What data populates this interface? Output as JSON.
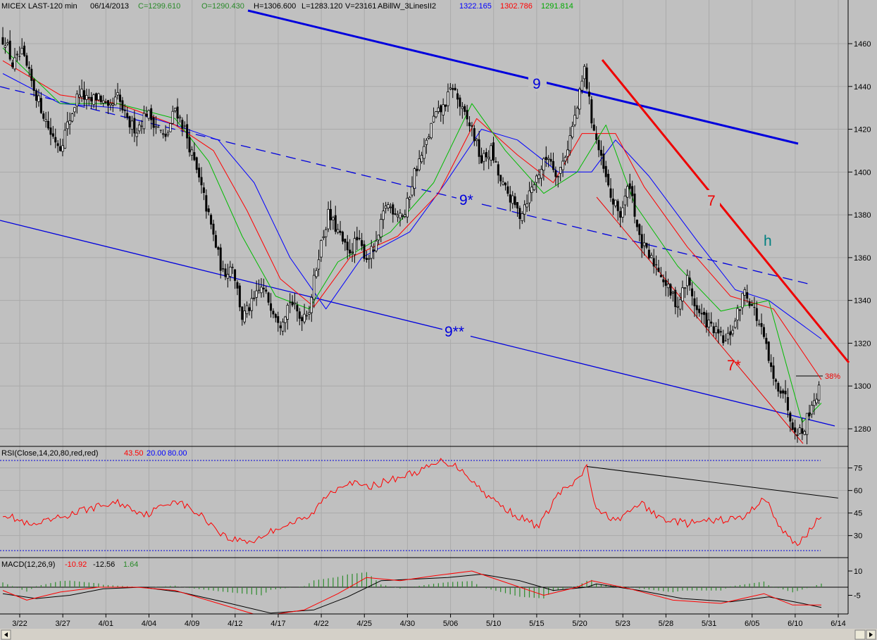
{
  "header": {
    "symbol": "MICEX LAST-120 min",
    "date": "06/14/2013",
    "close": "C=1299.610",
    "open": "O=1290.430",
    "high": "H=1306.600",
    "low": "L=1283.120",
    "volume": "V=23161",
    "study": "ABillW_3LinesII2",
    "line_blue": "1322.165",
    "line_red": "1302.786",
    "line_green": "1291.814"
  },
  "rsi_header": {
    "label": "RSI(Close,14,20,80,red,red)",
    "value": "43.50",
    "lower": "20.00",
    "upper": "80.00"
  },
  "macd_header": {
    "label": "MACD(12,26,9)",
    "macd": "-10.92",
    "signal": "-12.56",
    "hist": "1.64"
  },
  "annotations": {
    "nine": "9",
    "nine_star": "9*",
    "nine_2star": "9**",
    "seven": "7",
    "seven_star": "7*",
    "h": "h",
    "fib": "38%"
  },
  "colors": {
    "background": "#c0c0c0",
    "candles": "#000000",
    "ma_blue": "#0000ff",
    "ma_red": "#ff0000",
    "ma_green": "#00bb00",
    "trend_blue": "#0000dd",
    "trend_red": "#ee0000",
    "annot_teal": "#008080",
    "hist_green": "#2e8b2e"
  },
  "chart_data": {
    "type": "candlestick",
    "price_axis": {
      "ticks": [
        1280,
        1300,
        1320,
        1340,
        1360,
        1380,
        1400,
        1420,
        1440,
        1460
      ],
      "range": [
        1266,
        1470
      ]
    },
    "x_ticks": [
      "3/22",
      "3/27",
      "4/01",
      "4/04",
      "4/09",
      "4/12",
      "4/17",
      "4/22",
      "4/25",
      "4/30",
      "5/06",
      "5/10",
      "5/15",
      "5/20",
      "5/23",
      "5/28",
      "5/31",
      "6/05",
      "6/10",
      "6/14"
    ],
    "close_path": [
      [
        1,
        1462
      ],
      [
        4,
        1450
      ],
      [
        8,
        1455
      ],
      [
        12,
        1442
      ],
      [
        16,
        1430
      ],
      [
        20,
        1418
      ],
      [
        24,
        1412
      ],
      [
        28,
        1425
      ],
      [
        32,
        1438
      ],
      [
        36,
        1432
      ],
      [
        40,
        1436
      ],
      [
        44,
        1428
      ],
      [
        48,
        1435
      ],
      [
        52,
        1423
      ],
      [
        56,
        1420
      ],
      [
        60,
        1428
      ],
      [
        64,
        1422
      ],
      [
        68,
        1415
      ],
      [
        72,
        1430
      ],
      [
        76,
        1420
      ],
      [
        80,
        1404
      ],
      [
        84,
        1388
      ],
      [
        88,
        1370
      ],
      [
        92,
        1352
      ],
      [
        96,
        1357
      ],
      [
        100,
        1332
      ],
      [
        104,
        1338
      ],
      [
        108,
        1346
      ],
      [
        112,
        1338
      ],
      [
        116,
        1330
      ],
      [
        120,
        1340
      ],
      [
        124,
        1332
      ],
      [
        128,
        1336
      ],
      [
        132,
        1362
      ],
      [
        136,
        1380
      ],
      [
        140,
        1372
      ],
      [
        144,
        1362
      ],
      [
        148,
        1368
      ],
      [
        152,
        1360
      ],
      [
        156,
        1365
      ],
      [
        160,
        1385
      ],
      [
        164,
        1382
      ],
      [
        168,
        1380
      ],
      [
        172,
        1400
      ],
      [
        176,
        1410
      ],
      [
        180,
        1425
      ],
      [
        184,
        1430
      ],
      [
        188,
        1440
      ],
      [
        192,
        1428
      ],
      [
        196,
        1420
      ],
      [
        200,
        1405
      ],
      [
        204,
        1410
      ],
      [
        208,
        1395
      ],
      [
        212,
        1388
      ],
      [
        216,
        1380
      ],
      [
        220,
        1390
      ],
      [
        224,
        1400
      ],
      [
        228,
        1408
      ],
      [
        232,
        1398
      ],
      [
        236,
        1412
      ],
      [
        240,
        1430
      ],
      [
        243,
        1448
      ],
      [
        246,
        1425
      ],
      [
        250,
        1405
      ],
      [
        254,
        1388
      ],
      [
        258,
        1380
      ],
      [
        262,
        1395
      ],
      [
        266,
        1368
      ],
      [
        270,
        1360
      ],
      [
        274,
        1355
      ],
      [
        278,
        1345
      ],
      [
        282,
        1338
      ],
      [
        286,
        1350
      ],
      [
        290,
        1335
      ],
      [
        294,
        1330
      ],
      [
        298,
        1325
      ],
      [
        302,
        1320
      ],
      [
        306,
        1330
      ],
      [
        310,
        1345
      ],
      [
        314,
        1335
      ],
      [
        318,
        1322
      ],
      [
        322,
        1302
      ],
      [
        326,
        1298
      ],
      [
        330,
        1282
      ],
      [
        334,
        1278
      ],
      [
        338,
        1292
      ],
      [
        342,
        1300
      ]
    ],
    "price_bars": 342,
    "ma_blue_path": [
      [
        0,
        1446
      ],
      [
        24,
        1432
      ],
      [
        48,
        1430
      ],
      [
        72,
        1422
      ],
      [
        90,
        1415
      ],
      [
        105,
        1395
      ],
      [
        120,
        1360
      ],
      [
        135,
        1336
      ],
      [
        150,
        1360
      ],
      [
        170,
        1372
      ],
      [
        185,
        1395
      ],
      [
        200,
        1420
      ],
      [
        215,
        1415
      ],
      [
        232,
        1400
      ],
      [
        246,
        1400
      ],
      [
        256,
        1415
      ],
      [
        270,
        1398
      ],
      [
        290,
        1368
      ],
      [
        306,
        1345
      ],
      [
        320,
        1340
      ],
      [
        342,
        1322
      ]
    ],
    "ma_red_path": [
      [
        0,
        1452
      ],
      [
        24,
        1436
      ],
      [
        48,
        1432
      ],
      [
        72,
        1422
      ],
      [
        88,
        1410
      ],
      [
        102,
        1382
      ],
      [
        116,
        1350
      ],
      [
        130,
        1337
      ],
      [
        145,
        1360
      ],
      [
        165,
        1370
      ],
      [
        182,
        1390
      ],
      [
        198,
        1425
      ],
      [
        215,
        1408
      ],
      [
        230,
        1395
      ],
      [
        242,
        1418
      ],
      [
        256,
        1418
      ],
      [
        268,
        1393
      ],
      [
        286,
        1365
      ],
      [
        304,
        1342
      ],
      [
        322,
        1336
      ],
      [
        342,
        1303
      ]
    ],
    "ma_green_path": [
      [
        0,
        1458
      ],
      [
        24,
        1432
      ],
      [
        48,
        1432
      ],
      [
        72,
        1425
      ],
      [
        86,
        1405
      ],
      [
        100,
        1370
      ],
      [
        114,
        1342
      ],
      [
        128,
        1336
      ],
      [
        140,
        1358
      ],
      [
        162,
        1372
      ],
      [
        180,
        1395
      ],
      [
        196,
        1432
      ],
      [
        210,
        1410
      ],
      [
        226,
        1390
      ],
      [
        240,
        1400
      ],
      [
        252,
        1422
      ],
      [
        264,
        1385
      ],
      [
        282,
        1356
      ],
      [
        300,
        1335
      ],
      [
        320,
        1340
      ],
      [
        334,
        1283
      ],
      [
        342,
        1292
      ]
    ],
    "rsi": {
      "ticks": [
        30,
        45,
        60,
        75
      ],
      "levels": [
        20,
        80
      ],
      "path": [
        [
          0,
          45
        ],
        [
          12,
          36
        ],
        [
          24,
          42
        ],
        [
          36,
          48
        ],
        [
          48,
          52
        ],
        [
          60,
          44
        ],
        [
          72,
          54
        ],
        [
          84,
          42
        ],
        [
          94,
          28
        ],
        [
          104,
          26
        ],
        [
          116,
          36
        ],
        [
          128,
          42
        ],
        [
          136,
          58
        ],
        [
          144,
          66
        ],
        [
          152,
          62
        ],
        [
          164,
          68
        ],
        [
          176,
          74
        ],
        [
          184,
          80
        ],
        [
          192,
          74
        ],
        [
          200,
          60
        ],
        [
          208,
          50
        ],
        [
          216,
          42
        ],
        [
          224,
          36
        ],
        [
          232,
          58
        ],
        [
          240,
          66
        ],
        [
          244,
          76
        ],
        [
          248,
          46
        ],
        [
          258,
          40
        ],
        [
          266,
          52
        ],
        [
          274,
          42
        ],
        [
          286,
          38
        ],
        [
          298,
          40
        ],
        [
          310,
          42
        ],
        [
          318,
          56
        ],
        [
          326,
          32
        ],
        [
          332,
          24
        ],
        [
          342,
          43
        ]
      ],
      "trend": [
        [
          244,
          76
        ],
        [
          349,
          55
        ]
      ]
    },
    "macd": {
      "ticks": [
        10,
        -5
      ],
      "macd_path": [
        [
          0,
          -2
        ],
        [
          10,
          -8
        ],
        [
          24,
          -3
        ],
        [
          40,
          0
        ],
        [
          56,
          0
        ],
        [
          72,
          -2
        ],
        [
          90,
          -10
        ],
        [
          108,
          -18
        ],
        [
          126,
          -14
        ],
        [
          140,
          -4
        ],
        [
          152,
          6
        ],
        [
          166,
          4
        ],
        [
          180,
          7
        ],
        [
          196,
          10
        ],
        [
          212,
          2
        ],
        [
          226,
          -5
        ],
        [
          240,
          0
        ],
        [
          246,
          4
        ],
        [
          262,
          -1
        ],
        [
          280,
          -8
        ],
        [
          300,
          -10
        ],
        [
          318,
          -4
        ],
        [
          330,
          -11
        ],
        [
          342,
          -11
        ]
      ],
      "signal_path": [
        [
          0,
          -4
        ],
        [
          14,
          -7
        ],
        [
          28,
          -5
        ],
        [
          42,
          -1
        ],
        [
          58,
          0
        ],
        [
          74,
          -3
        ],
        [
          92,
          -9
        ],
        [
          112,
          -16
        ],
        [
          130,
          -14
        ],
        [
          144,
          -6
        ],
        [
          158,
          4
        ],
        [
          172,
          5
        ],
        [
          186,
          6
        ],
        [
          200,
          8
        ],
        [
          216,
          4
        ],
        [
          230,
          -2
        ],
        [
          244,
          0
        ],
        [
          248,
          2
        ],
        [
          266,
          -2
        ],
        [
          284,
          -7
        ],
        [
          304,
          -9
        ],
        [
          320,
          -6
        ],
        [
          334,
          -10
        ],
        [
          342,
          -12.5
        ]
      ]
    }
  }
}
